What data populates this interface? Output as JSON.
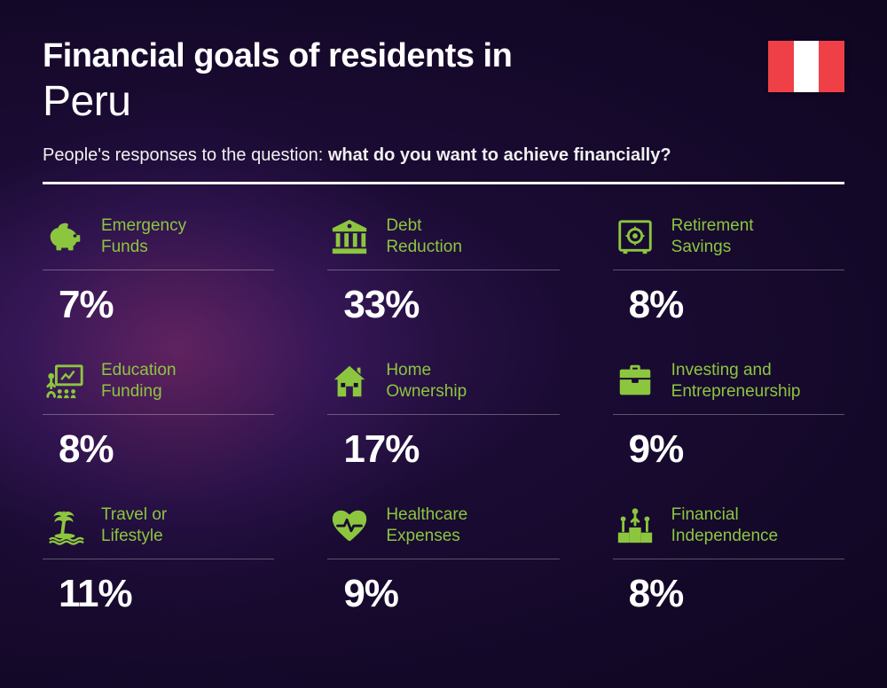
{
  "header": {
    "title_line1": "Financial goals of residents in",
    "title_line2": "Peru",
    "subtitle_prefix": "People's responses to the question: ",
    "subtitle_bold": "what do you want to achieve financially?"
  },
  "flag": {
    "left_color": "#ef4048",
    "center_color": "#ffffff",
    "right_color": "#ef4048"
  },
  "accent_color": "#8cc63f",
  "text_color": "#ffffff",
  "label_color": "#8cc63f",
  "cards": [
    {
      "label_line1": "Emergency",
      "label_line2": "Funds",
      "value": "7%",
      "icon": "piggy-bank"
    },
    {
      "label_line1": "Debt",
      "label_line2": "Reduction",
      "value": "33%",
      "icon": "bank"
    },
    {
      "label_line1": "Retirement",
      "label_line2": "Savings",
      "value": "8%",
      "icon": "safe"
    },
    {
      "label_line1": "Education",
      "label_line2": "Funding",
      "value": "8%",
      "icon": "presentation"
    },
    {
      "label_line1": "Home",
      "label_line2": "Ownership",
      "value": "17%",
      "icon": "house"
    },
    {
      "label_line1": "Investing and",
      "label_line2": "Entrepreneurship",
      "value": "9%",
      "icon": "briefcase"
    },
    {
      "label_line1": "Travel or",
      "label_line2": "Lifestyle",
      "value": "11%",
      "icon": "island"
    },
    {
      "label_line1": "Healthcare",
      "label_line2": "Expenses",
      "value": "9%",
      "icon": "heart-pulse"
    },
    {
      "label_line1": "Financial",
      "label_line2": "Independence",
      "value": "8%",
      "icon": "podium"
    }
  ]
}
